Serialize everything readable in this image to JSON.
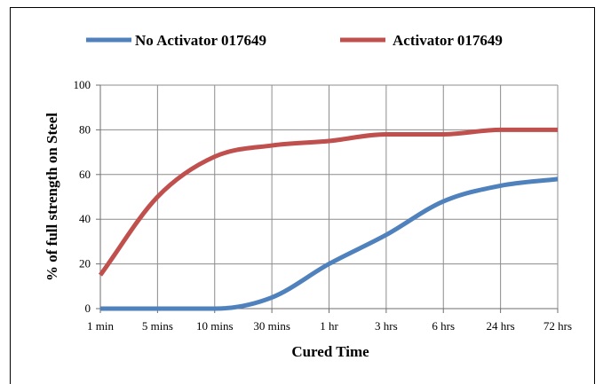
{
  "chart_data": {
    "type": "line",
    "title": "",
    "xlabel": "Cured Time",
    "ylabel": "% of full strength on Steel",
    "categories": [
      "1 min",
      "5 mins",
      "10 mins",
      "30 mins",
      "1 hr",
      "3 hrs",
      "6 hrs",
      "24 hrs",
      "72 hrs"
    ],
    "ylim": [
      0,
      100
    ],
    "yticks": [
      0,
      20,
      40,
      60,
      80,
      100
    ],
    "grid": true,
    "legend_position": "top",
    "series": [
      {
        "name": "No Activator 017649",
        "color": "#4f81bd",
        "values": [
          0,
          0,
          0,
          5,
          20,
          33,
          48,
          55,
          58
        ]
      },
      {
        "name": "Activator 017649",
        "color": "#c0504d",
        "values": [
          15,
          50,
          68,
          73,
          75,
          78,
          78,
          80,
          80
        ]
      }
    ]
  }
}
